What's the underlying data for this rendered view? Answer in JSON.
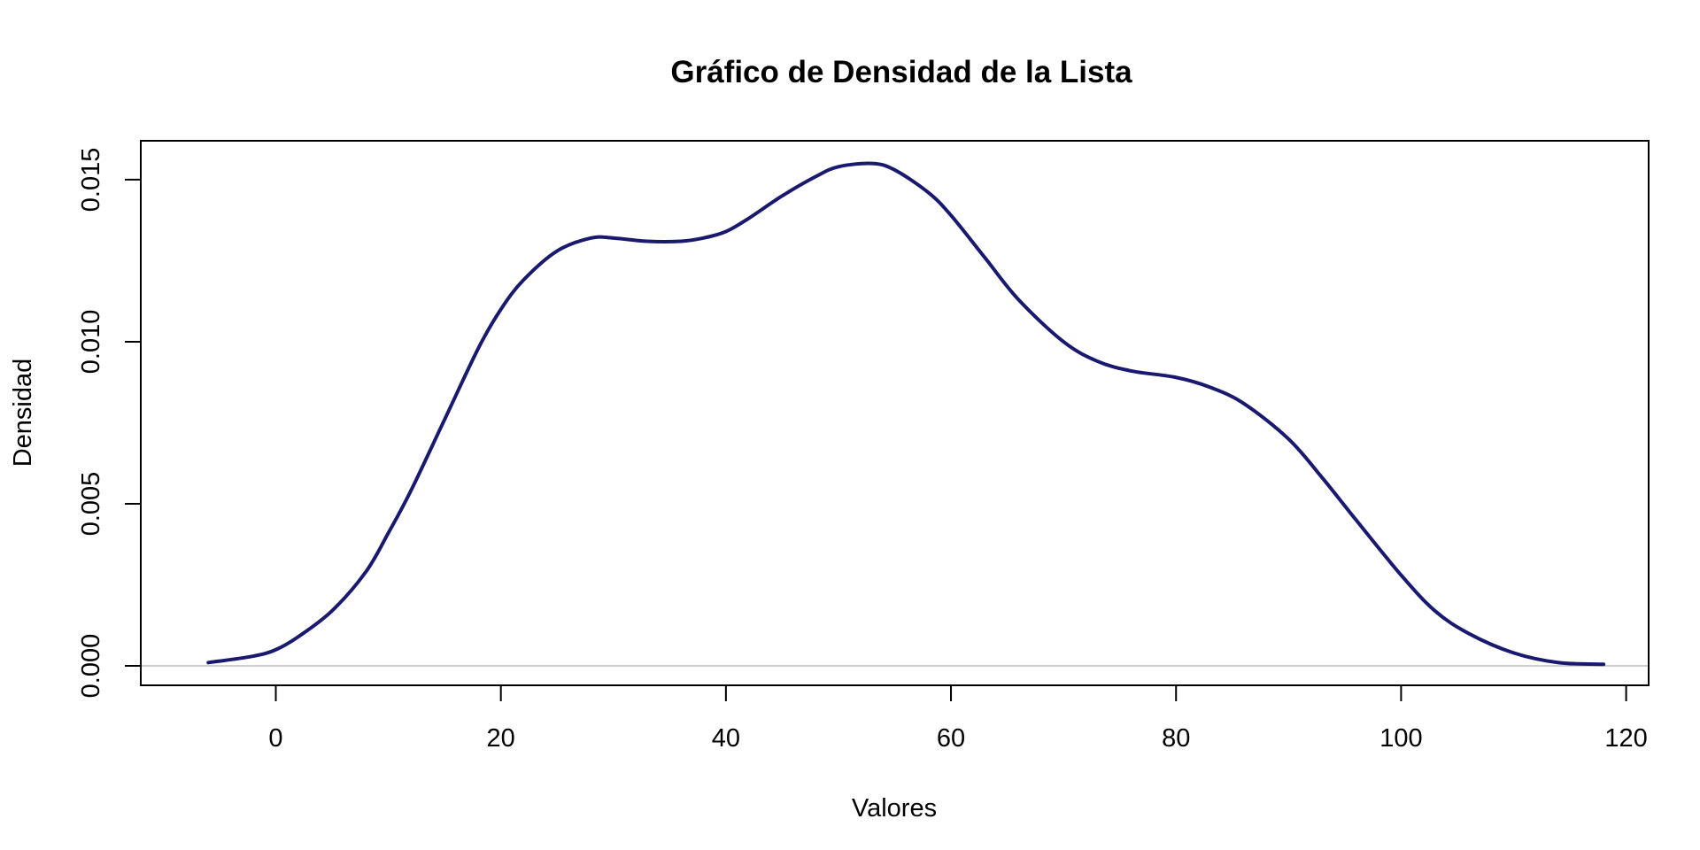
{
  "chart_data": {
    "type": "line",
    "title": "Gráfico de Densidad de la Lista",
    "xlabel": "Valores",
    "ylabel": "Densidad",
    "xlim": [
      -12,
      122
    ],
    "ylim": [
      -0.0006,
      0.0162
    ],
    "x_ticks": [
      0,
      20,
      40,
      60,
      80,
      100,
      120
    ],
    "x_tick_labels": [
      "0",
      "20",
      "40",
      "60",
      "80",
      "100",
      "120"
    ],
    "y_ticks": [
      0.0,
      0.005,
      0.01,
      0.015
    ],
    "y_tick_labels": [
      "0.000",
      "0.005",
      "0.010",
      "0.015"
    ],
    "baseline": 0,
    "grid": false,
    "legend": "none",
    "series": [
      {
        "color": "#191970",
        "x": [
          -6,
          -2,
          0,
          2,
          5,
          8,
          10,
          12,
          15,
          18,
          20,
          22,
          25,
          28,
          30,
          33,
          36,
          38,
          40,
          42,
          45,
          48,
          50,
          53,
          55,
          58,
          60,
          63,
          66,
          70,
          73,
          76,
          80,
          83,
          86,
          90,
          93,
          96,
          100,
          103,
          106,
          110,
          114,
          118
        ],
        "y": [
          0.0001,
          0.0003,
          0.0005,
          0.0009,
          0.0017,
          0.0029,
          0.0041,
          0.0054,
          0.0076,
          0.0098,
          0.011,
          0.0119,
          0.0128,
          0.0132,
          0.0132,
          0.0131,
          0.0131,
          0.0132,
          0.0134,
          0.0138,
          0.0145,
          0.0151,
          0.0154,
          0.0155,
          0.0153,
          0.0146,
          0.0139,
          0.0126,
          0.0113,
          0.01,
          0.0094,
          0.0091,
          0.0089,
          0.0086,
          0.0081,
          0.007,
          0.0058,
          0.0045,
          0.0028,
          0.0017,
          0.001,
          0.0004,
          0.0001,
          5e-05
        ]
      }
    ]
  }
}
